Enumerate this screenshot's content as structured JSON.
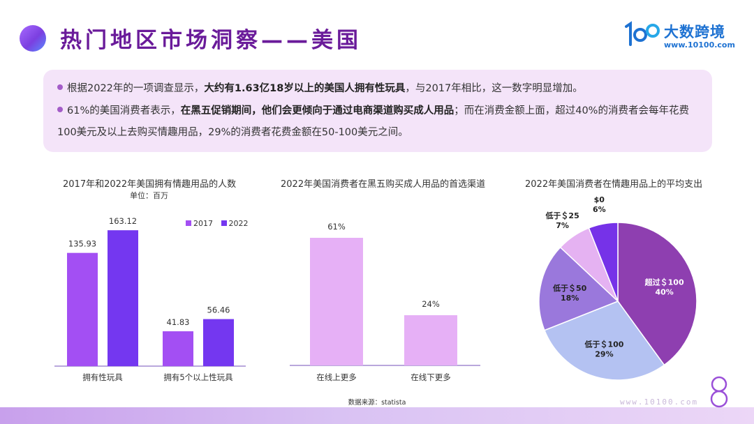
{
  "header": {
    "title": "热门地区市场洞察——美国",
    "logo_name": "大数跨境",
    "logo_url": "www.10100.com"
  },
  "summary": {
    "bullet1": {
      "pre": "根据2022年的一项调查显示，",
      "bold": "大约有1.63亿18岁以上的美国人拥有性玩具",
      "post": "，与2017年相比，这一数字明显增加。"
    },
    "bullet2": {
      "pre": "61%的美国消费者表示，",
      "bold": "在黑五促销期间，他们会更倾向于通过电商渠道购买成人用品",
      "post": "；而在消费金额上面，超过40%的消费者会每年花费100美元及以上去购买情趣用品，29%的消费者花费金额在50-100美元之间。"
    }
  },
  "chart_data": [
    {
      "type": "bar",
      "title": "2017年和2022年美国拥有情趣用品的人数",
      "subtitle": "单位：百万",
      "categories": [
        "拥有性玩具",
        "拥有5个以上性玩具"
      ],
      "series": [
        {
          "name": "2017",
          "values": [
            135.93,
            41.83
          ],
          "color": "#a34ff3"
        },
        {
          "name": "2022",
          "values": [
            163.12,
            56.46
          ],
          "color": "#7437f0"
        }
      ],
      "value_labels": [
        [
          "135.93",
          "41.83"
        ],
        [
          "163.12",
          "56.46"
        ]
      ],
      "ylim": [
        0,
        180
      ],
      "legend": "top-right",
      "grid": false
    },
    {
      "type": "bar",
      "title": "2022年美国消费者在黑五购买成人用品的首选渠道",
      "categories": [
        "在线上更多",
        "在线下更多"
      ],
      "values": [
        61,
        24
      ],
      "value_labels": [
        "61%",
        "24%"
      ],
      "color": "#e6b0f6",
      "ylim": [
        0,
        70
      ],
      "grid": false
    },
    {
      "type": "pie",
      "title": "2022年美国消费者在情趣用品上的平均支出",
      "slices": [
        {
          "line1": "超过＄100",
          "line2": "40%",
          "value": 40,
          "color": "#8e3fb0",
          "text_color": "#ffffff"
        },
        {
          "line1": "低于＄100",
          "line2": "29%",
          "value": 29,
          "color": "#b4c2f2",
          "text_color": "#222222"
        },
        {
          "line1": "低于＄50",
          "line2": "18%",
          "value": 18,
          "color": "#9a78dc",
          "text_color": "#222222"
        },
        {
          "line1": "低于＄25",
          "line2": "7%",
          "value": 7,
          "color": "#e5b2f2",
          "text_color": "#222222"
        },
        {
          "line1": "$0",
          "line2": "6%",
          "value": 6,
          "color": "#7632e8",
          "text_color": "#222222"
        }
      ]
    }
  ],
  "footer": {
    "source": "数据来源：statista",
    "url": "www.10100.com"
  },
  "colors": {
    "title": "#6a1b9a",
    "summary_bg": "#f4e4f9",
    "bullet": "#a35cc8",
    "logo": "#1e72d2"
  }
}
